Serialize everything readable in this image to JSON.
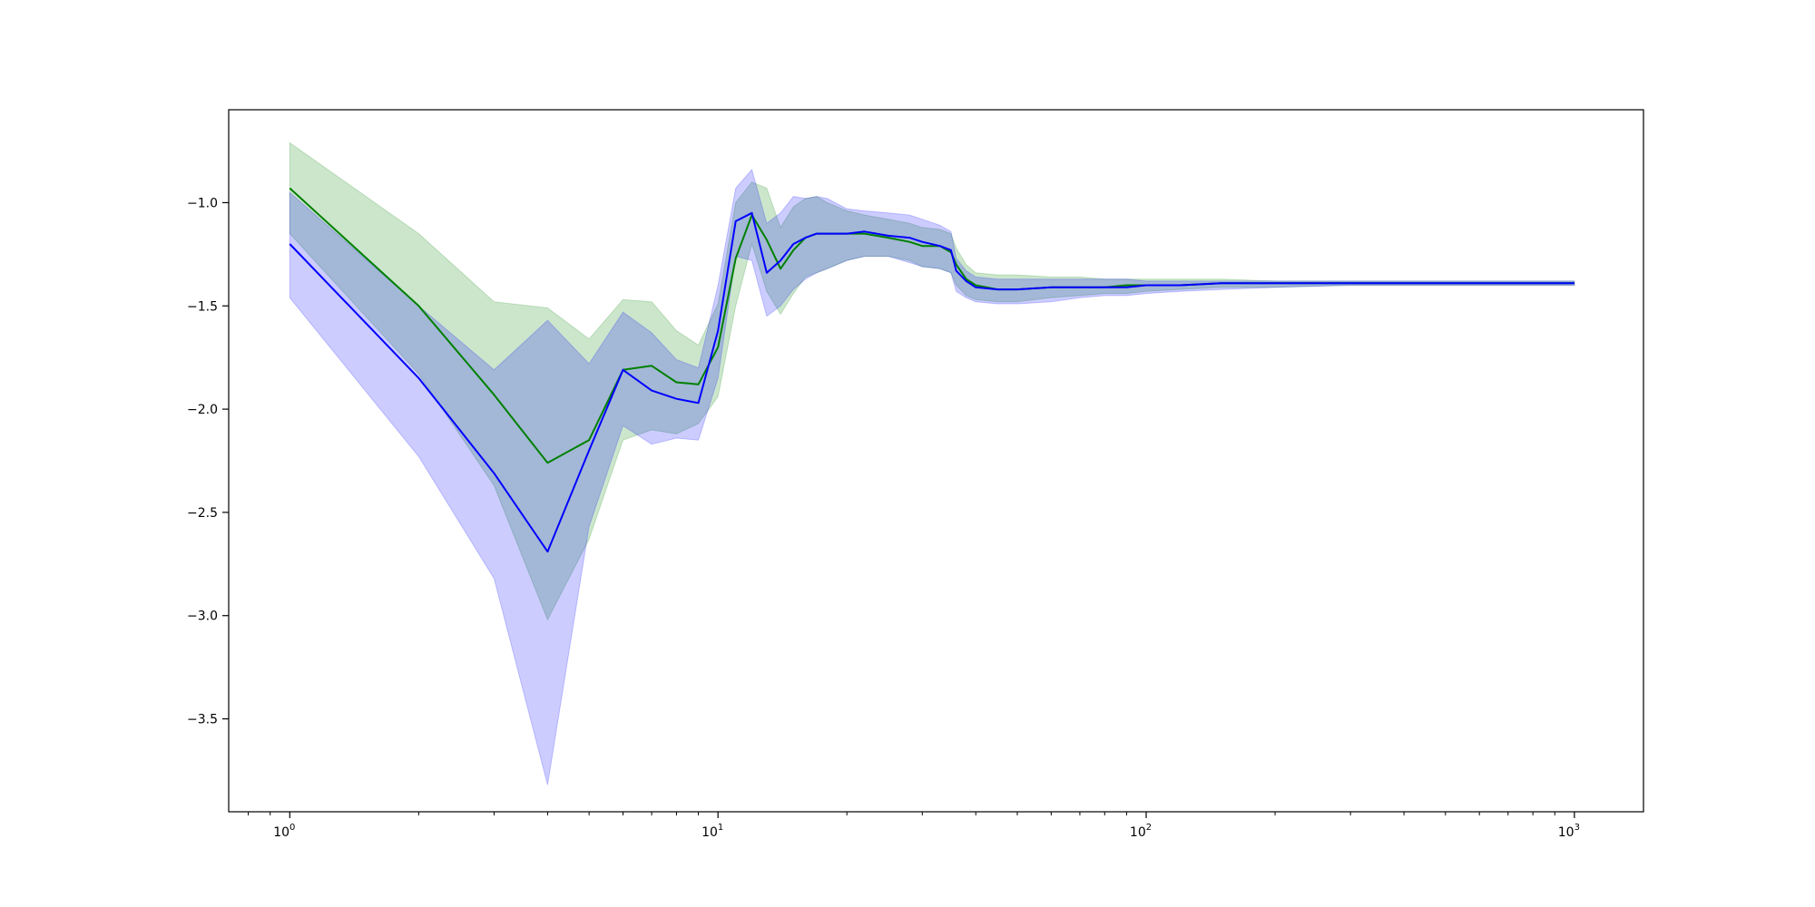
{
  "chart_data": {
    "type": "line",
    "title": "",
    "xlabel": "",
    "ylabel": "",
    "x_scale": "log",
    "xlim": [
      0.72,
      1450
    ],
    "ylim": [
      -3.95,
      -0.55
    ],
    "grid": false,
    "legend": "none",
    "x_ticks": [
      {
        "value": 1,
        "base": "10",
        "exp": "0"
      },
      {
        "value": 10,
        "base": "10",
        "exp": "1"
      },
      {
        "value": 100,
        "base": "10",
        "exp": "2"
      },
      {
        "value": 1000,
        "base": "10",
        "exp": "3"
      }
    ],
    "y_ticks": [
      {
        "value": -1.0,
        "label": "−1.0"
      },
      {
        "value": -1.5,
        "label": "−1.5"
      },
      {
        "value": -2.0,
        "label": "−2.0"
      },
      {
        "value": -2.5,
        "label": "−2.5"
      },
      {
        "value": -3.0,
        "label": "−3.0"
      },
      {
        "value": -3.5,
        "label": "−3.5"
      }
    ],
    "series": [
      {
        "color": "#008000",
        "band_color": "#008000",
        "x": [
          1,
          2,
          3,
          4,
          5,
          6,
          7,
          8,
          9,
          10,
          11,
          12,
          13,
          14,
          15,
          16,
          17,
          18,
          20,
          22,
          25,
          28,
          30,
          33,
          35,
          36,
          38,
          40,
          45,
          50,
          60,
          70,
          80,
          90,
          100,
          120,
          150,
          200,
          300,
          500,
          1000
        ],
        "y": [
          -0.93,
          -1.5,
          -1.93,
          -2.26,
          -2.15,
          -1.81,
          -1.79,
          -1.87,
          -1.88,
          -1.7,
          -1.27,
          -1.06,
          -1.18,
          -1.32,
          -1.23,
          -1.17,
          -1.15,
          -1.15,
          -1.15,
          -1.15,
          -1.17,
          -1.19,
          -1.21,
          -1.21,
          -1.24,
          -1.3,
          -1.37,
          -1.4,
          -1.42,
          -1.42,
          -1.41,
          -1.41,
          -1.41,
          -1.4,
          -1.4,
          -1.4,
          -1.39,
          -1.39,
          -1.39,
          -1.39,
          -1.39
        ],
        "upper": [
          -0.71,
          -1.15,
          -1.48,
          -1.51,
          -1.66,
          -1.47,
          -1.48,
          -1.62,
          -1.69,
          -1.49,
          -1.0,
          -0.9,
          -0.93,
          -1.12,
          -1.02,
          -0.98,
          -0.97,
          -1.0,
          -1.04,
          -1.06,
          -1.08,
          -1.1,
          -1.12,
          -1.13,
          -1.15,
          -1.22,
          -1.3,
          -1.34,
          -1.35,
          -1.35,
          -1.36,
          -1.36,
          -1.37,
          -1.37,
          -1.37,
          -1.37,
          -1.37,
          -1.38,
          -1.38,
          -1.38,
          -1.38
        ],
        "lower": [
          -1.15,
          -1.83,
          -2.37,
          -3.02,
          -2.63,
          -2.15,
          -2.1,
          -2.12,
          -2.07,
          -1.94,
          -1.5,
          -1.2,
          -1.43,
          -1.54,
          -1.44,
          -1.36,
          -1.34,
          -1.32,
          -1.28,
          -1.26,
          -1.26,
          -1.28,
          -1.31,
          -1.32,
          -1.34,
          -1.4,
          -1.45,
          -1.47,
          -1.48,
          -1.48,
          -1.46,
          -1.45,
          -1.44,
          -1.44,
          -1.43,
          -1.42,
          -1.41,
          -1.41,
          -1.4,
          -1.4,
          -1.4
        ]
      },
      {
        "color": "#0000ff",
        "band_color": "#0000ff",
        "x": [
          1,
          2,
          3,
          4,
          5,
          6,
          7,
          8,
          9,
          10,
          11,
          12,
          13,
          14,
          15,
          16,
          17,
          18,
          20,
          22,
          25,
          28,
          30,
          33,
          35,
          36,
          38,
          40,
          45,
          50,
          60,
          70,
          80,
          90,
          100,
          120,
          150,
          200,
          300,
          500,
          1000
        ],
        "y": [
          -1.2,
          -1.85,
          -2.31,
          -2.69,
          -2.2,
          -1.81,
          -1.91,
          -1.95,
          -1.97,
          -1.62,
          -1.09,
          -1.05,
          -1.34,
          -1.28,
          -1.2,
          -1.17,
          -1.15,
          -1.15,
          -1.15,
          -1.14,
          -1.16,
          -1.17,
          -1.19,
          -1.21,
          -1.23,
          -1.33,
          -1.38,
          -1.41,
          -1.42,
          -1.42,
          -1.41,
          -1.41,
          -1.41,
          -1.41,
          -1.4,
          -1.4,
          -1.39,
          -1.39,
          -1.39,
          -1.39,
          -1.39
        ],
        "upper": [
          -0.95,
          -1.5,
          -1.81,
          -1.57,
          -1.78,
          -1.53,
          -1.63,
          -1.76,
          -1.8,
          -1.4,
          -0.93,
          -0.84,
          -1.1,
          -1.05,
          -0.97,
          -0.98,
          -0.97,
          -0.98,
          -1.03,
          -1.04,
          -1.05,
          -1.06,
          -1.08,
          -1.11,
          -1.14,
          -1.27,
          -1.33,
          -1.36,
          -1.37,
          -1.37,
          -1.37,
          -1.37,
          -1.37,
          -1.37,
          -1.38,
          -1.38,
          -1.38,
          -1.38,
          -1.38,
          -1.38,
          -1.38
        ],
        "lower": [
          -1.46,
          -2.23,
          -2.82,
          -3.82,
          -2.57,
          -2.08,
          -2.17,
          -2.14,
          -2.15,
          -1.85,
          -1.26,
          -1.28,
          -1.55,
          -1.5,
          -1.42,
          -1.37,
          -1.34,
          -1.32,
          -1.28,
          -1.26,
          -1.26,
          -1.29,
          -1.31,
          -1.32,
          -1.34,
          -1.43,
          -1.46,
          -1.48,
          -1.49,
          -1.49,
          -1.48,
          -1.46,
          -1.45,
          -1.45,
          -1.44,
          -1.43,
          -1.42,
          -1.41,
          -1.4,
          -1.4,
          -1.4
        ]
      }
    ]
  }
}
